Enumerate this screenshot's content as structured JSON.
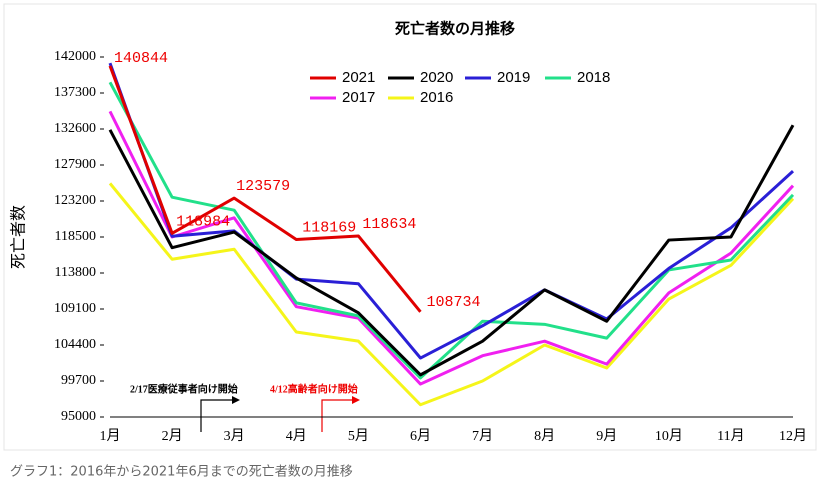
{
  "chart_data": {
    "type": "line",
    "title": "死亡者数の月推移",
    "y_label": "死亡者数",
    "categories": [
      "1月",
      "2月",
      "3月",
      "4月",
      "5月",
      "6月",
      "7月",
      "8月",
      "9月",
      "10月",
      "11月",
      "12月"
    ],
    "ylim": [
      95000,
      142000
    ],
    "yticks": [
      95000,
      99700,
      104400,
      109100,
      113800,
      118500,
      123200,
      127900,
      132600,
      137300,
      142000
    ],
    "series": [
      {
        "name": "2021",
        "color": "#e00000",
        "values": [
          140844,
          118984,
          123579,
          118169,
          118634,
          108734,
          null,
          null,
          null,
          null,
          null,
          null
        ]
      },
      {
        "name": "2020",
        "color": "#000000",
        "values": [
          132500,
          117100,
          119150,
          113150,
          108600,
          100500,
          104900,
          111600,
          107500,
          118100,
          118500,
          133100
        ]
      },
      {
        "name": "2019",
        "color": "#2a1fd6",
        "values": [
          141200,
          118600,
          119300,
          113000,
          112400,
          102700,
          106900,
          111600,
          107800,
          114400,
          119700,
          127100
        ]
      },
      {
        "name": "2018",
        "color": "#22e08a",
        "values": [
          138700,
          123700,
          122000,
          109900,
          108200,
          100100,
          107500,
          107100,
          105300,
          114200,
          115500,
          124000
        ]
      },
      {
        "name": "2017",
        "color": "#f020f0",
        "values": [
          134900,
          118500,
          121000,
          109400,
          107900,
          99300,
          103000,
          104900,
          101900,
          111200,
          116400,
          125200
        ]
      },
      {
        "name": "2016",
        "color": "#f5f51a",
        "values": [
          125500,
          115600,
          116900,
          106100,
          104900,
          96600,
          99700,
          104400,
          101400,
          110400,
          114800,
          123500
        ]
      }
    ],
    "data_labels_series": 0,
    "annotations": [
      "2/17医療従事者向け開始",
      "4/12高齢者向け開始"
    ],
    "caption": "グラフ1：2016年から2021年6月までの死亡者数の月推移"
  }
}
